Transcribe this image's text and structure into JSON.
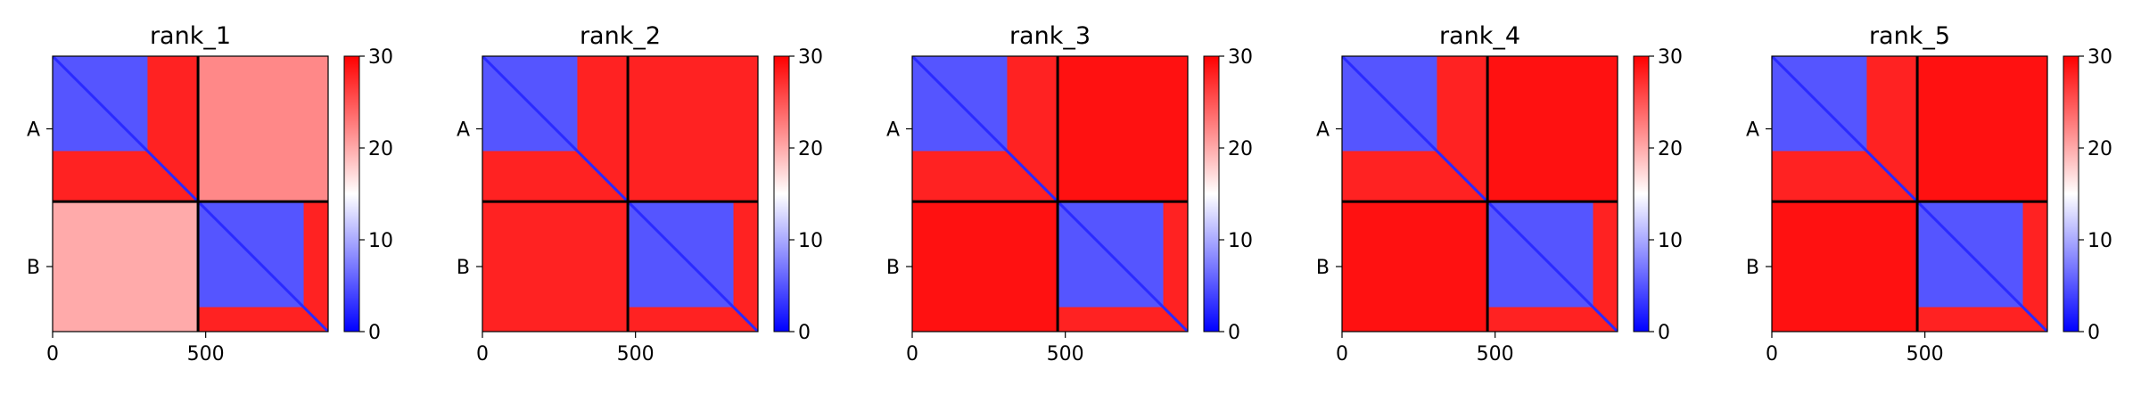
{
  "chart_data": {
    "type": "heatmap",
    "colormap": "bwr",
    "colorbar": {
      "min": 0,
      "max": 30,
      "ticks": [
        0,
        10,
        20,
        30
      ]
    },
    "x_ticks": [
      0,
      500
    ],
    "x_range": [
      0,
      900
    ],
    "chain_boundary": 475,
    "chains": [
      "A",
      "B"
    ],
    "diagonal_color": "#2a2aff",
    "colors": {
      "low": "#0000ff",
      "mid": "#ffffff",
      "high": "#ff0000"
    },
    "panels": [
      {
        "title": "rank_1",
        "blocks": {
          "A_A": 5,
          "A_B": 22,
          "B_A": 20,
          "B_B": 5
        },
        "a_tail": {
          "start": 310,
          "end": 475,
          "level": 28
        },
        "b_tail": {
          "start": 820,
          "end": 900,
          "level": 28
        }
      },
      {
        "title": "rank_2",
        "blocks": {
          "A_A": 5,
          "A_B": 28,
          "B_A": 28,
          "B_B": 5
        },
        "a_tail": {
          "start": 310,
          "end": 475,
          "level": 28
        },
        "b_tail": {
          "start": 820,
          "end": 900,
          "level": 28
        }
      },
      {
        "title": "rank_3",
        "blocks": {
          "A_A": 5,
          "A_B": 29,
          "B_A": 29,
          "B_B": 5
        },
        "a_tail": {
          "start": 310,
          "end": 475,
          "level": 28
        },
        "b_tail": {
          "start": 820,
          "end": 900,
          "level": 28
        }
      },
      {
        "title": "rank_4",
        "blocks": {
          "A_A": 5,
          "A_B": 29,
          "B_A": 29,
          "B_B": 5
        },
        "a_tail": {
          "start": 310,
          "end": 475,
          "level": 28
        },
        "b_tail": {
          "start": 820,
          "end": 900,
          "level": 28
        }
      },
      {
        "title": "rank_5",
        "blocks": {
          "A_A": 5,
          "A_B": 29,
          "B_A": 29,
          "B_B": 5
        },
        "a_tail": {
          "start": 310,
          "end": 475,
          "level": 28
        },
        "b_tail": {
          "start": 820,
          "end": 900,
          "level": 28
        }
      }
    ]
  }
}
